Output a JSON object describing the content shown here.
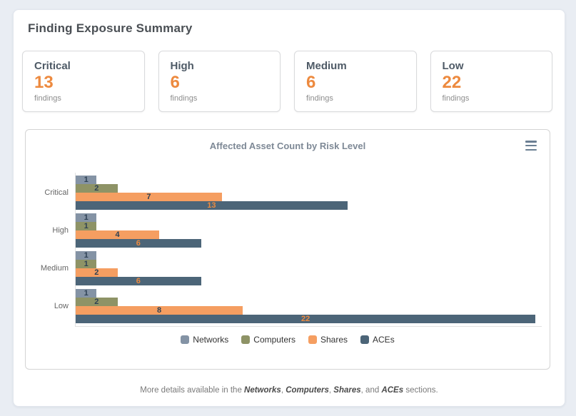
{
  "page": {
    "title": "Finding Exposure Summary"
  },
  "summary_cards": [
    {
      "label": "Critical",
      "count": "13",
      "unit": "findings"
    },
    {
      "label": "High",
      "count": "6",
      "unit": "findings"
    },
    {
      "label": "Medium",
      "count": "6",
      "unit": "findings"
    },
    {
      "label": "Low",
      "count": "22",
      "unit": "findings"
    }
  ],
  "colors": {
    "accent_orange": "#ed8a3f",
    "page_background": "#e9edf3",
    "card_heading": "#4e5a66",
    "chart_title_text": "#7e8996",
    "axis_label": "#666666",
    "legend_text": "#333333"
  },
  "chart": {
    "menu_icon": "hamburger-menu"
  },
  "chart_data": {
    "type": "bar",
    "orientation": "horizontal",
    "title": "Affected Asset Count by Risk Level",
    "categories": [
      "Critical",
      "High",
      "Medium",
      "Low"
    ],
    "series": [
      {
        "name": "Networks",
        "color": "#8493a5",
        "label_color": "#2e4154",
        "values": [
          1,
          1,
          1,
          1
        ]
      },
      {
        "name": "Computers",
        "color": "#8e9366",
        "label_color": "#2e4154",
        "values": [
          2,
          1,
          1,
          2
        ]
      },
      {
        "name": "Shares",
        "color": "#f59e61",
        "label_color": "#2e4154",
        "values": [
          7,
          4,
          2,
          8
        ]
      },
      {
        "name": "ACEs",
        "color": "#4c6578",
        "label_color": "#ed8a3f",
        "values": [
          13,
          6,
          6,
          22
        ]
      }
    ],
    "xlim": [
      0,
      22.3
    ],
    "grid": false,
    "legend_position": "bottom",
    "data_labels": true
  },
  "footer": {
    "text_before": "More details available in the ",
    "section_1": "Networks",
    "sep_1": ", ",
    "section_2": "Computers",
    "sep_2": ", ",
    "section_3": "Shares",
    "sep_3": ", and ",
    "section_4": "ACEs",
    "text_after": " sections."
  }
}
